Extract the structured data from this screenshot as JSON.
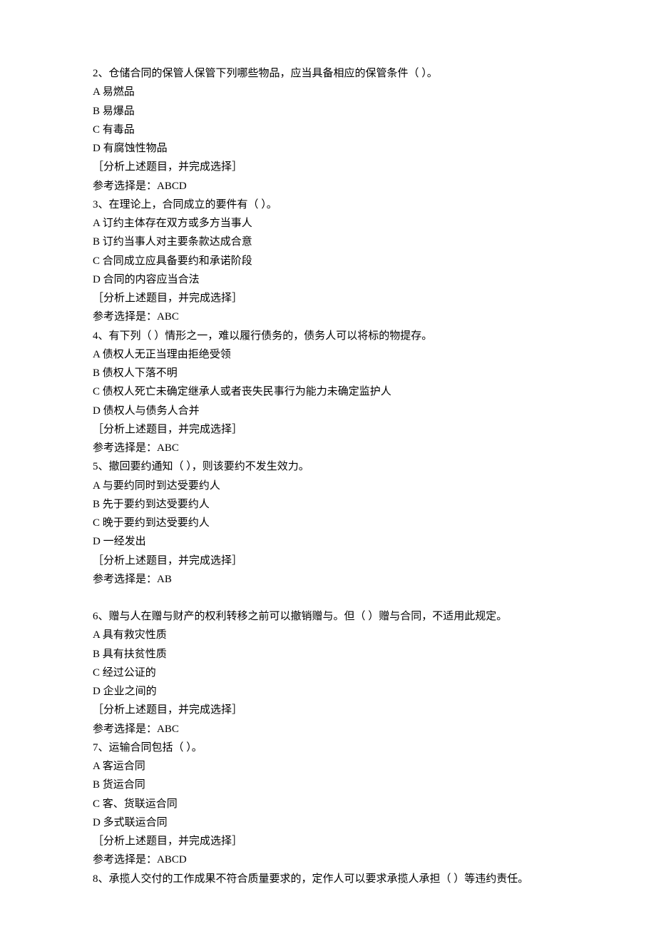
{
  "questions": [
    {
      "stem": "2、仓储合同的保管人保管下列哪些物品，应当具备相应的保管条件（ ）。",
      "options": [
        "A 易燃品",
        "B 易爆品",
        "C 有毒品",
        "D 有腐蚀性物品"
      ],
      "instruction": "［分析上述题目，并完成选择］",
      "answer": "参考选择是：ABCD"
    },
    {
      "stem": "3、在理论上，合同成立的要件有（ ）。",
      "options": [
        "A 订约主体存在双方或多方当事人",
        "B 订约当事人对主要条款达成合意",
        "C 合同成立应具备要约和承诺阶段",
        "D 合同的内容应当合法"
      ],
      "instruction": "［分析上述题目，并完成选择］",
      "answer": "参考选择是：ABC"
    },
    {
      "stem": "4、有下列（ ）情形之一，难以履行债务的，债务人可以将标的物提存。",
      "options": [
        "A 债权人无正当理由拒绝受领",
        "B 债权人下落不明",
        "C 债权人死亡未确定继承人或者丧失民事行为能力未确定监护人",
        "D 债权人与债务人合并"
      ],
      "instruction": "［分析上述题目，并完成选择］",
      "answer": "参考选择是：ABC"
    },
    {
      "stem": "5、撤回要约通知（ ），则该要约不发生效力。",
      "options": [
        "A 与要约同时到达受要约人",
        "B 先于要约到达受要约人",
        "C 晚于要约到达受要约人",
        "D 一经发出"
      ],
      "instruction": "［分析上述题目，并完成选择］",
      "answer": "参考选择是：AB"
    },
    {
      "stem": "6、赠与人在赠与财产的权利转移之前可以撤销赠与。但（ ）赠与合同，不适用此规定。",
      "options": [
        "A 具有救灾性质",
        "B 具有扶贫性质",
        "C 经过公证的",
        "D 企业之间的"
      ],
      "instruction": "［分析上述题目，并完成选择］",
      "answer": "参考选择是：ABC"
    },
    {
      "stem": "7、运输合同包括（ ）。",
      "options": [
        "A 客运合同",
        "B 货运合同",
        "C 客、货联运合同",
        "D 多式联运合同"
      ],
      "instruction": "［分析上述题目，并完成选择］",
      "answer": "参考选择是：ABCD"
    },
    {
      "stem": "8、承揽人交付的工作成果不符合质量要求的，定作人可以要求承揽人承担（ ）等违约责任。",
      "options": [],
      "instruction": "",
      "answer": ""
    }
  ]
}
